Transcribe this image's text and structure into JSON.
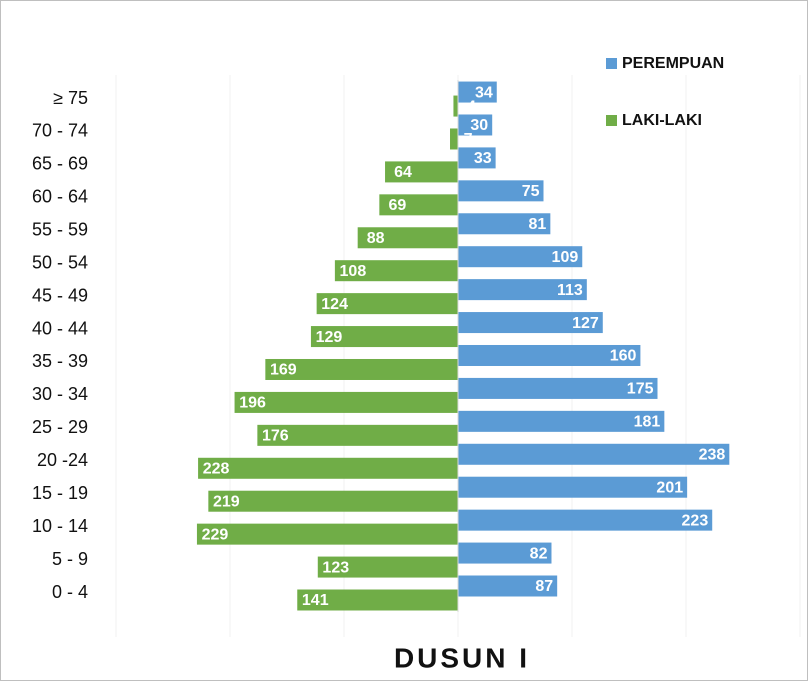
{
  "chart_data": {
    "type": "pyramid",
    "title": "DUSUN I",
    "categories": [
      "0 - 4",
      "5 - 9",
      "10 - 14",
      "15 - 19",
      "20 -24",
      "25 - 29",
      "30 - 34",
      "35 - 39",
      "40 - 44",
      "45 - 49",
      "50 - 54",
      "55 - 59",
      "60 - 64",
      "65 - 69",
      "70 - 74",
      "≥ 75"
    ],
    "series": [
      {
        "name": "PEREMPUAN",
        "color": "#5b9bd5",
        "side": "right",
        "values": [
          87,
          82,
          223,
          201,
          238,
          181,
          175,
          160,
          127,
          113,
          109,
          81,
          75,
          33,
          30,
          34
        ]
      },
      {
        "name": "LAKI-LAKI",
        "color": "#70ad47",
        "side": "left",
        "values": [
          141,
          123,
          229,
          219,
          228,
          176,
          196,
          169,
          129,
          124,
          108,
          88,
          69,
          64,
          7,
          4
        ]
      }
    ],
    "xlim": [
      -300,
      300
    ],
    "xticks": [
      -300,
      -200,
      -100,
      0,
      100,
      200,
      300
    ],
    "grid": true
  }
}
